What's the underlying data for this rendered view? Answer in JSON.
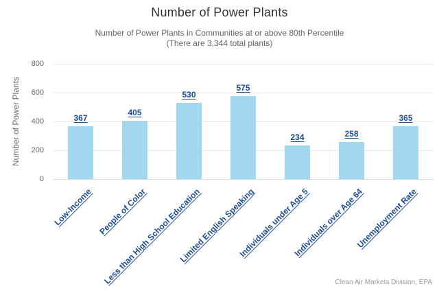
{
  "header": {
    "title": "Number of Power Plants",
    "subtitle_line1": "Number of Power Plants in Communities at or above 80th Percentile",
    "subtitle_line2": "(There are 3,344 total plants)"
  },
  "chart_data": {
    "type": "bar",
    "title": "Number of Power Plants",
    "subtitle": "Number of Power Plants in Communities at or above 80th Percentile (There are 3,344 total plants)",
    "categories": [
      "Low-Income",
      "People of Color",
      "Less than High School Education",
      "Limited English Speaking",
      "Individuals under Age 5",
      "Individuals over Age 64",
      "Unemployment Rate"
    ],
    "values": [
      367,
      405,
      530,
      575,
      234,
      258,
      365
    ],
    "xlabel": "",
    "ylabel": "Number of Power Plants",
    "ylim": [
      0,
      800
    ],
    "yticks": [
      0,
      200,
      400,
      600,
      800
    ],
    "grid": true,
    "legend_position": "none",
    "colors": {
      "bar_fill": "#a1d8ef",
      "data_label": "#1c4c96",
      "category_label": "#1c4c96",
      "gridline": "#e6e6e6",
      "axis_line": "#d4d9df",
      "title_text": "#333333",
      "subtitle_text": "#666666",
      "credits_text": "#999999"
    }
  },
  "credits": {
    "text": "Clean Air Markets Division, EPA"
  }
}
